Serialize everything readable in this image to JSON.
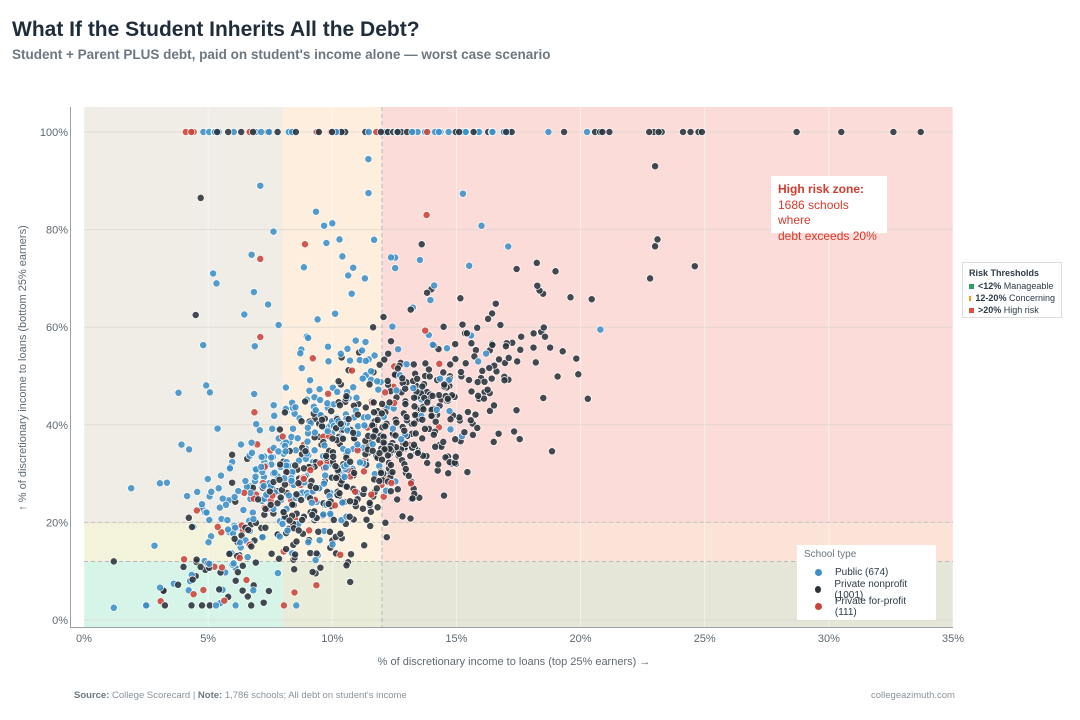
{
  "header": {
    "title": "What If the Student Inherits All the Debt?",
    "subtitle": "Student + Parent PLUS debt, paid on student's income alone — worst case scenario"
  },
  "chart_data": {
    "type": "scatter",
    "xlabel": "% of discretionary income to loans (top 25% earners) →",
    "ylabel": "↑ % of discretionary income to loans (bottom 25% earners)",
    "xlim": [
      0,
      35
    ],
    "ylim": [
      0,
      100
    ],
    "x_ticks": [
      0,
      5,
      10,
      15,
      20,
      25,
      30,
      35
    ],
    "x_tick_labels": [
      "0%",
      "5%",
      "10%",
      "15%",
      "20%",
      "25%",
      "30%",
      "35%"
    ],
    "y_ticks": [
      0,
      20,
      40,
      60,
      80,
      100
    ],
    "y_tick_labels": [
      "0%",
      "20%",
      "40%",
      "60%",
      "80%",
      "100%"
    ],
    "thresholds": [
      8,
      12,
      20
    ],
    "threshold_lines": [
      12
    ],
    "zone_colors": {
      "manageable": "#d6f5e8",
      "concerning": "#fdeedd",
      "high": "#fbdcd9",
      "neutral": "#f0ede6",
      "mixed_low": "#e9ecd9",
      "mixed_warm": "#f3f2da",
      "far_low": "#e5e5d8"
    },
    "series": [
      {
        "name": "Public (674)",
        "color": "#3d8fc6",
        "count": 674
      },
      {
        "name": "Private nonprofit (1001)",
        "color": "#2a323a",
        "count": 1001
      },
      {
        "name": "Private for-profit (111)",
        "color": "#c9443a",
        "count": 111
      }
    ],
    "sample_points": [
      {
        "series": 0,
        "x": 1.2,
        "y": 2.5
      },
      {
        "series": 1,
        "x": 1.2,
        "y": 12
      },
      {
        "series": 0,
        "x": 1.9,
        "y": 27
      },
      {
        "series": 1,
        "x": 3.2,
        "y": 6
      },
      {
        "series": 1,
        "x": 4.5,
        "y": 9
      },
      {
        "series": 1,
        "x": 6.2,
        "y": 9.8
      },
      {
        "series": 1,
        "x": 4.5,
        "y": 62.5
      },
      {
        "series": 1,
        "x": 4.7,
        "y": 86.5
      },
      {
        "series": 0,
        "x": 5.2,
        "y": 71
      },
      {
        "series": 2,
        "x": 7.1,
        "y": 58
      },
      {
        "series": 2,
        "x": 7.1,
        "y": 74
      },
      {
        "series": 0,
        "x": 7.1,
        "y": 89
      },
      {
        "series": 2,
        "x": 8.9,
        "y": 77
      },
      {
        "series": 2,
        "x": 13.8,
        "y": 83
      },
      {
        "series": 1,
        "x": 14.5,
        "y": 25.5
      },
      {
        "series": 1,
        "x": 16.5,
        "y": 36.5
      },
      {
        "series": 1,
        "x": 18.5,
        "y": 45.5
      },
      {
        "series": 1,
        "x": 23,
        "y": 93
      },
      {
        "series": 1,
        "x": 22.8,
        "y": 70
      },
      {
        "series": 1,
        "x": 24.6,
        "y": 72.5
      },
      {
        "series": 1,
        "x": 23.1,
        "y": 78
      },
      {
        "series": 0,
        "x": 20.8,
        "y": 59.5
      },
      {
        "series": 2,
        "x": 4.1,
        "y": 100
      },
      {
        "series": 1,
        "x": 28.7,
        "y": 100
      },
      {
        "series": 1,
        "x": 30.5,
        "y": 100
      },
      {
        "series": 1,
        "x": 32.6,
        "y": 100
      },
      {
        "series": 1,
        "x": 33.7,
        "y": 100
      }
    ],
    "annotation": {
      "title": "High risk zone:",
      "line1": "1686 schools where",
      "line2": "debt exceeds 20%"
    },
    "risk_legend": {
      "title": "Risk Thresholds",
      "items": [
        {
          "bold": "<12%",
          "text": "Manageable",
          "color": "#2ca25f"
        },
        {
          "bold": "12-20%",
          "text": "Concerning",
          "color": "#f39c12"
        },
        {
          "bold": ">20%",
          "text": "High risk",
          "color": "#e74c3c"
        }
      ]
    },
    "legend": {
      "title": "School type",
      "items": [
        "Public (674)",
        "Private nonprofit (1001)",
        "Private for-profit (111)"
      ]
    }
  },
  "footer": {
    "source_label": "Source:",
    "source_text": "College Scorecard",
    "separator": "|",
    "note_label": "Note:",
    "note_text": "1,786 schools; All debt on student's income",
    "brand": "collegeazimuth.com"
  }
}
